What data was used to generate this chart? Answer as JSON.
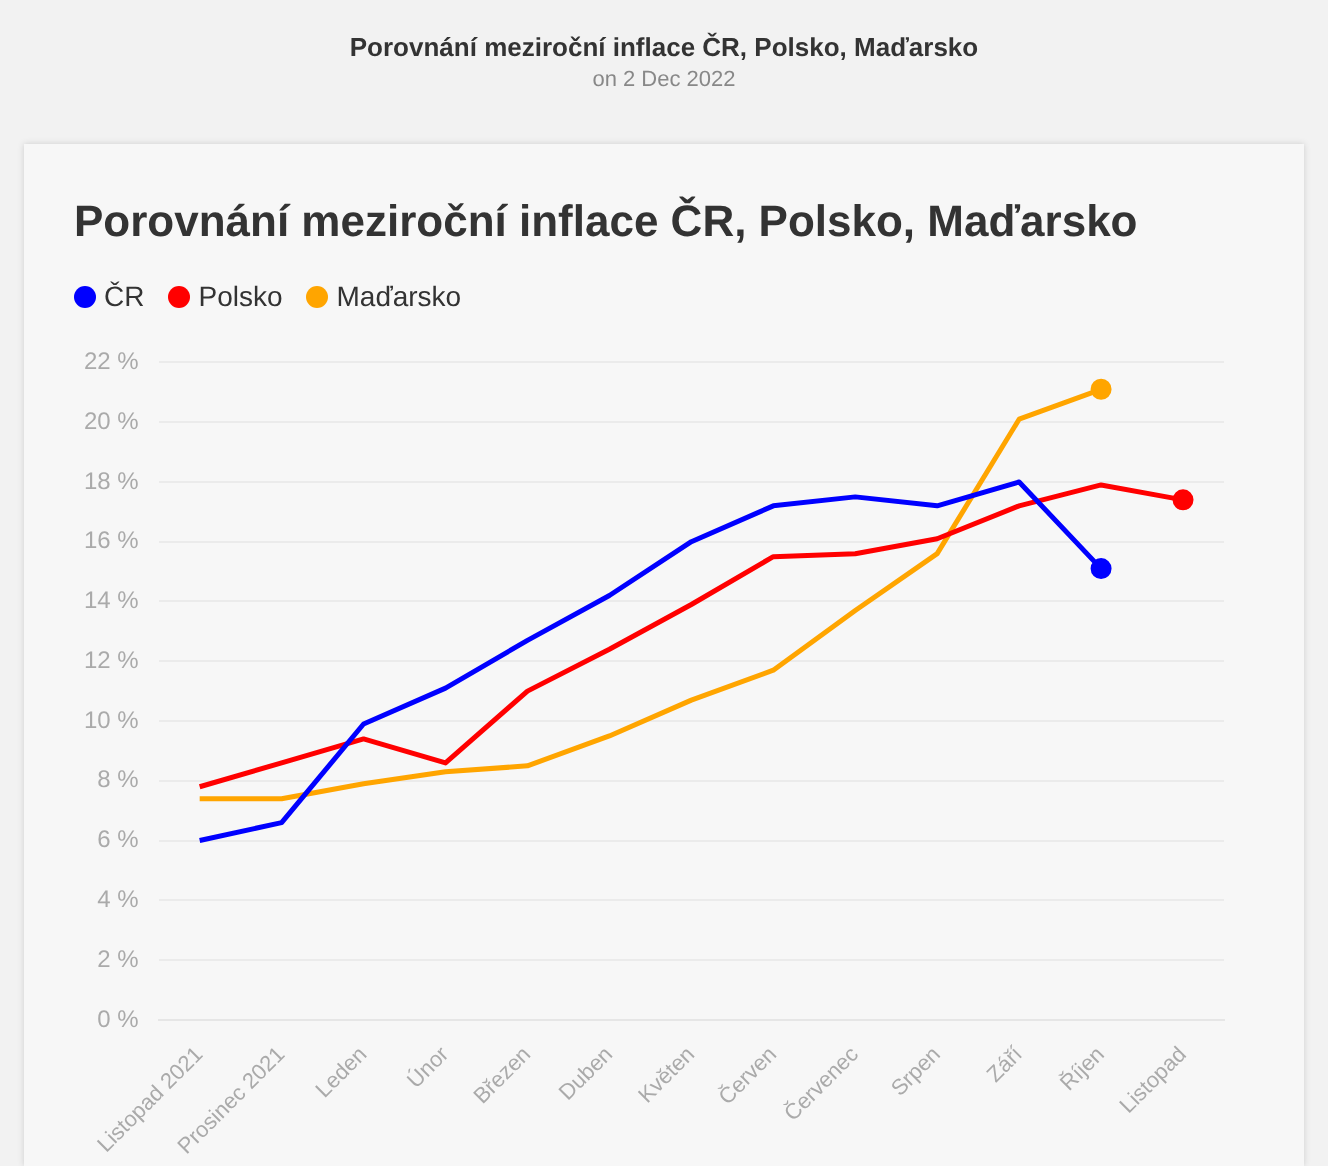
{
  "chart_data": {
    "type": "line",
    "title": "Porovnání meziroční inflace ČR, Polsko, Maďarsko",
    "annotations": [
      "Porovnání meziroční inflace ČR, Polsko, Maďarsko",
      "on 2 Dec 2022"
    ],
    "categories": [
      "Listopad 2021",
      "Prosinec 2021",
      "Leden",
      "Únor",
      "Březen",
      "Duben",
      "Květen",
      "Červen",
      "Červenec",
      "Srpen",
      "Září",
      "Říjen",
      "Listopad"
    ],
    "series": [
      {
        "name": "ČR",
        "color": "#0000ff",
        "values": [
          6.0,
          6.6,
          9.9,
          11.1,
          12.7,
          14.2,
          16.0,
          17.2,
          17.5,
          17.2,
          18.0,
          15.1,
          null
        ]
      },
      {
        "name": "Polsko",
        "color": "#ff0000",
        "values": [
          7.8,
          8.6,
          9.4,
          8.6,
          11.0,
          12.4,
          13.9,
          15.5,
          15.6,
          16.1,
          17.2,
          17.9,
          17.4
        ]
      },
      {
        "name": "Maďarsko",
        "color": "#ffa500",
        "values": [
          7.4,
          7.4,
          7.9,
          8.3,
          8.5,
          9.5,
          10.7,
          11.7,
          13.7,
          15.6,
          20.1,
          21.1,
          null
        ]
      }
    ],
    "ylim": [
      0,
      22
    ],
    "yticks": [
      {
        "value": 0,
        "label": "0 %"
      },
      {
        "value": 2,
        "label": "2 %"
      },
      {
        "value": 4,
        "label": "4 %"
      },
      {
        "value": 6,
        "label": "6 %"
      },
      {
        "value": 8,
        "label": "8 %"
      },
      {
        "value": 10,
        "label": "10 %"
      },
      {
        "value": 12,
        "label": "12 %"
      },
      {
        "value": 14,
        "label": "14 %"
      },
      {
        "value": 16,
        "label": "16 %"
      },
      {
        "value": 18,
        "label": "18 %"
      },
      {
        "value": 20,
        "label": "20 %"
      },
      {
        "value": 22,
        "label": "22 %"
      }
    ],
    "grid": "y",
    "legend": "top left",
    "line_style": "solid"
  }
}
